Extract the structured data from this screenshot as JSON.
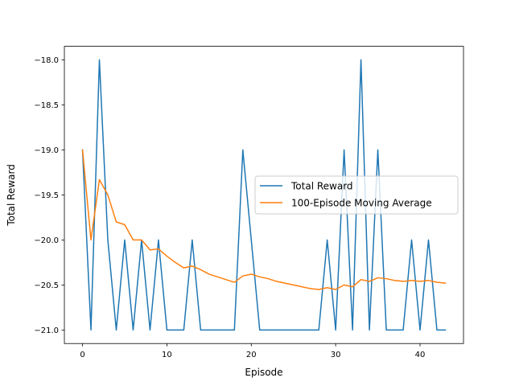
{
  "chart_data": {
    "type": "line",
    "xlabel": "Episode",
    "ylabel": "Total Reward",
    "xlim": [
      -2.15,
      45.15
    ],
    "ylim": [
      -21.15,
      -17.85
    ],
    "xticks": [
      0,
      10,
      20,
      30,
      40
    ],
    "yticks": [
      -18.0,
      -18.5,
      -19.0,
      -19.5,
      -20.0,
      -20.5,
      -21.0
    ],
    "ytick_labels": [
      "−18.0",
      "−18.5",
      "−19.0",
      "−19.5",
      "−20.0",
      "−20.5",
      "−21.0"
    ],
    "grid": false,
    "legend_position": "center-right",
    "x": [
      0,
      1,
      2,
      3,
      4,
      5,
      6,
      7,
      8,
      9,
      10,
      11,
      12,
      13,
      14,
      15,
      16,
      17,
      18,
      19,
      20,
      21,
      22,
      23,
      24,
      25,
      26,
      27,
      28,
      29,
      30,
      31,
      32,
      33,
      34,
      35,
      36,
      37,
      38,
      39,
      40,
      41,
      42,
      43
    ],
    "series": [
      {
        "name": "Total Reward",
        "color": "#1f77b4",
        "values": [
          -19,
          -21,
          -18,
          -20,
          -21,
          -20,
          -21,
          -20,
          -21,
          -20,
          -21,
          -21,
          -21,
          -20,
          -21,
          -21,
          -21,
          -21,
          -21,
          -19,
          -20,
          -21,
          -21,
          -21,
          -21,
          -21,
          -21,
          -21,
          -21,
          -20,
          -21,
          -19,
          -21,
          -18,
          -21,
          -19,
          -21,
          -21,
          -21,
          -20,
          -21,
          -20,
          -21,
          -21
        ]
      },
      {
        "name": "100-Episode Moving Average",
        "color": "#ff7f0e",
        "values": [
          -19.0,
          -20.0,
          -19.33,
          -19.5,
          -19.8,
          -19.83,
          -20.0,
          -20.0,
          -20.11,
          -20.1,
          -20.18,
          -20.25,
          -20.31,
          -20.29,
          -20.33,
          -20.38,
          -20.41,
          -20.44,
          -20.47,
          -20.4,
          -20.38,
          -20.41,
          -20.43,
          -20.46,
          -20.48,
          -20.5,
          -20.52,
          -20.54,
          -20.55,
          -20.53,
          -20.55,
          -20.5,
          -20.52,
          -20.44,
          -20.46,
          -20.42,
          -20.43,
          -20.45,
          -20.46,
          -20.45,
          -20.46,
          -20.45,
          -20.47,
          -20.48
        ]
      }
    ]
  }
}
